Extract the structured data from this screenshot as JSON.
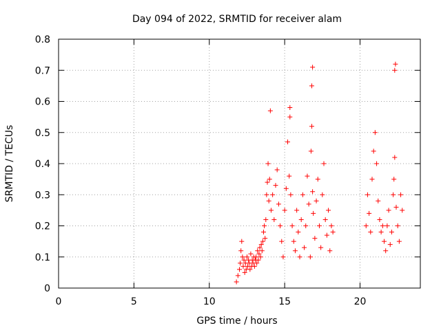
{
  "chart_data": {
    "type": "scatter",
    "title": "Day 094 of 2022, SRMTID for receiver alam",
    "xlabel": "GPS time / hours",
    "ylabel": "SRMTID / TECUs",
    "xlim": [
      0,
      24
    ],
    "ylim": [
      0,
      0.8
    ],
    "xticks": [
      0,
      5,
      10,
      15,
      20
    ],
    "yticks": [
      0,
      0.1,
      0.2,
      0.3,
      0.4,
      0.5,
      0.6,
      0.7,
      0.8
    ],
    "grid": true,
    "marker": "+",
    "colors": {
      "series": "#ff0000",
      "grid": "#a0a0a0",
      "axis": "#000000"
    },
    "series": [
      {
        "name": "SRMTID",
        "x": [
          11.8,
          11.9,
          12.0,
          12.05,
          12.1,
          12.15,
          12.2,
          12.25,
          12.3,
          12.35,
          12.4,
          12.45,
          12.5,
          12.55,
          12.6,
          12.65,
          12.7,
          12.75,
          12.8,
          12.85,
          12.9,
          12.95,
          13.0,
          13.05,
          13.1,
          13.15,
          13.2,
          13.25,
          13.3,
          13.35,
          13.4,
          13.45,
          13.5,
          13.55,
          13.6,
          13.65,
          13.7,
          13.75,
          13.8,
          13.85,
          13.9,
          13.95,
          14.0,
          14.1,
          14.2,
          14.3,
          14.4,
          14.5,
          14.6,
          14.7,
          14.8,
          14.9,
          15.0,
          15.1,
          15.2,
          15.3,
          15.35,
          15.4,
          15.5,
          15.6,
          15.7,
          15.8,
          15.9,
          16.0,
          16.1,
          16.2,
          16.3,
          16.4,
          16.5,
          16.6,
          16.7,
          16.75,
          16.8,
          16.85,
          16.9,
          17.0,
          17.1,
          17.2,
          17.3,
          17.4,
          17.5,
          17.6,
          17.7,
          17.8,
          17.9,
          18.0,
          18.1,
          18.2,
          20.4,
          20.5,
          20.6,
          20.7,
          20.8,
          20.9,
          21.0,
          21.1,
          21.2,
          21.3,
          21.4,
          21.5,
          21.6,
          21.7,
          21.8,
          21.9,
          22.0,
          22.1,
          22.2,
          22.25,
          22.3,
          22.4,
          22.5,
          22.6,
          22.7,
          22.8,
          14.05,
          15.35,
          16.8,
          16.85,
          22.3,
          22.35
        ],
        "y": [
          0.02,
          0.04,
          0.06,
          0.08,
          0.12,
          0.15,
          0.1,
          0.07,
          0.09,
          0.05,
          0.08,
          0.06,
          0.1,
          0.07,
          0.09,
          0.08,
          0.06,
          0.11,
          0.07,
          0.09,
          0.08,
          0.1,
          0.07,
          0.09,
          0.1,
          0.08,
          0.12,
          0.09,
          0.11,
          0.13,
          0.1,
          0.14,
          0.12,
          0.15,
          0.18,
          0.2,
          0.16,
          0.22,
          0.3,
          0.34,
          0.4,
          0.28,
          0.35,
          0.25,
          0.3,
          0.22,
          0.33,
          0.38,
          0.27,
          0.2,
          0.15,
          0.1,
          0.25,
          0.32,
          0.47,
          0.36,
          0.55,
          0.3,
          0.2,
          0.15,
          0.12,
          0.25,
          0.18,
          0.1,
          0.22,
          0.3,
          0.13,
          0.2,
          0.36,
          0.27,
          0.1,
          0.44,
          0.52,
          0.31,
          0.24,
          0.16,
          0.28,
          0.35,
          0.2,
          0.13,
          0.3,
          0.4,
          0.22,
          0.17,
          0.25,
          0.12,
          0.2,
          0.18,
          0.2,
          0.3,
          0.24,
          0.18,
          0.35,
          0.44,
          0.5,
          0.4,
          0.28,
          0.22,
          0.18,
          0.2,
          0.15,
          0.12,
          0.2,
          0.25,
          0.14,
          0.18,
          0.3,
          0.35,
          0.42,
          0.26,
          0.2,
          0.15,
          0.3,
          0.25,
          0.57,
          0.58,
          0.65,
          0.71,
          0.7,
          0.72
        ]
      }
    ]
  }
}
